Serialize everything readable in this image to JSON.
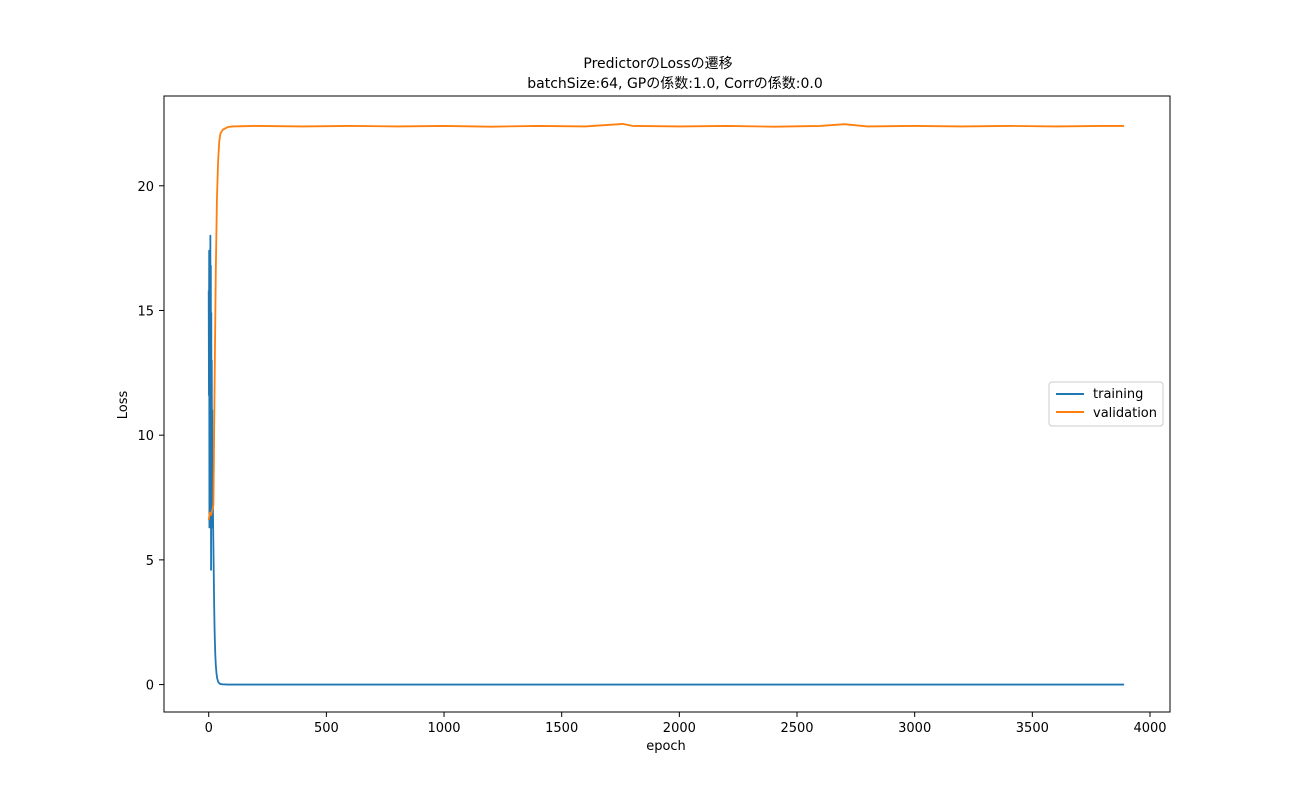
{
  "chart_data": {
    "type": "line",
    "title": "PredictorのLossの遷移",
    "subtitle": "batchSize:64, GPの係数:1.0, Corrの係数:0.0",
    "xlabel": "epoch",
    "ylabel": "Loss",
    "xlim": [
      -190,
      4085
    ],
    "ylim": [
      -1.1,
      23.6
    ],
    "xticks": [
      0,
      500,
      1000,
      1500,
      2000,
      2500,
      3000,
      3500,
      4000
    ],
    "xtick_labels": [
      "0",
      "500",
      "1000",
      "1500",
      "2000",
      "2500",
      "3000",
      "3500",
      "4000"
    ],
    "yticks": [
      0,
      5,
      10,
      15,
      20
    ],
    "ytick_labels": [
      "0",
      "5",
      "10",
      "15",
      "20"
    ],
    "grid": false,
    "legend_position": "center-right",
    "series": [
      {
        "name": "training",
        "color": "#1f77b4",
        "x": [
          0,
          1,
          2,
          3,
          4,
          5,
          6,
          7,
          8,
          9,
          10,
          11,
          12,
          13,
          14,
          15,
          16,
          17,
          18,
          19,
          20,
          21,
          22,
          23,
          24,
          25,
          26,
          28,
          30,
          33,
          36,
          40,
          45,
          50,
          60,
          80,
          100,
          200,
          500,
          1000,
          1500,
          2000,
          2500,
          3000,
          3500,
          3890
        ],
        "y": [
          15.8,
          11.6,
          17.4,
          6.3,
          14.5,
          16.7,
          7.2,
          18.0,
          9.1,
          16.8,
          4.6,
          14.9,
          6.6,
          13.0,
          6.3,
          11.0,
          8.2,
          8.0,
          7.0,
          6.2,
          5.5,
          4.8,
          4.0,
          3.3,
          2.7,
          2.2,
          1.8,
          1.2,
          0.8,
          0.45,
          0.25,
          0.12,
          0.05,
          0.02,
          0.01,
          0.0,
          0.0,
          0.0,
          0.0,
          0.0,
          0.0,
          0.0,
          0.0,
          0.0,
          0.0,
          0.0
        ]
      },
      {
        "name": "validation",
        "color": "#ff7f0e",
        "x": [
          0,
          5,
          10,
          15,
          20,
          25,
          30,
          35,
          40,
          45,
          50,
          60,
          70,
          80,
          100,
          200,
          400,
          600,
          800,
          1000,
          1200,
          1400,
          1600,
          1760,
          1800,
          2000,
          2200,
          2400,
          2600,
          2700,
          2800,
          3000,
          3200,
          3400,
          3600,
          3800,
          3890
        ],
        "y": [
          6.6,
          6.9,
          6.8,
          7.0,
          7.2,
          12.0,
          16.5,
          19.5,
          21.0,
          21.8,
          22.1,
          22.25,
          22.3,
          22.35,
          22.38,
          22.4,
          22.38,
          22.4,
          22.38,
          22.4,
          22.37,
          22.4,
          22.38,
          22.48,
          22.4,
          22.38,
          22.4,
          22.37,
          22.4,
          22.47,
          22.38,
          22.4,
          22.38,
          22.4,
          22.38,
          22.4,
          22.4
        ]
      }
    ]
  }
}
